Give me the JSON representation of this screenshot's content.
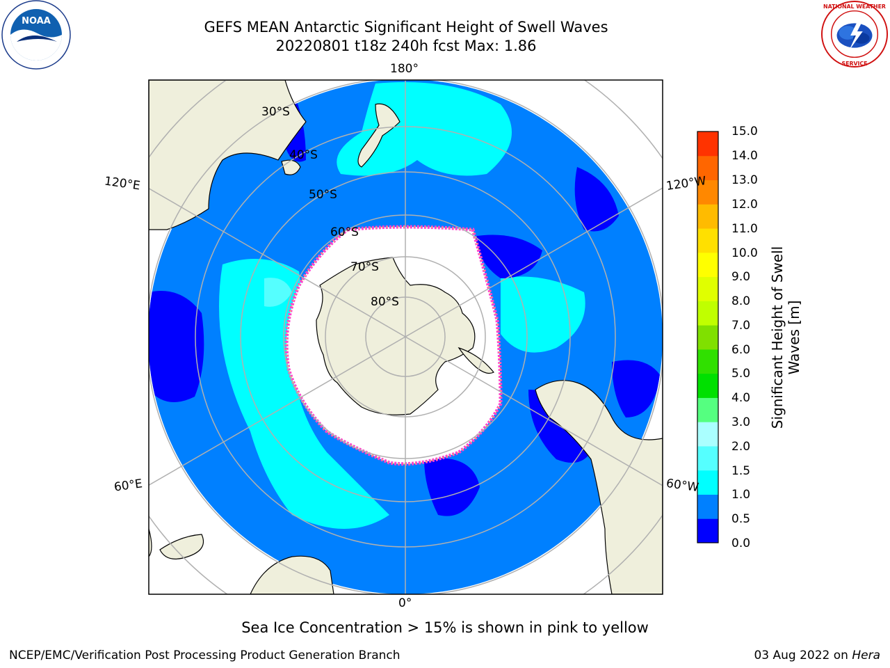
{
  "header": {
    "title_line1": "GEFS MEAN Antarctic Significant Height of Swell Waves",
    "title_line2": "20220801 t18z 240h fcst   Max: 1.86"
  },
  "logos": {
    "left": "NOAA",
    "right": "NATIONAL WEATHER SERVICE"
  },
  "map": {
    "projection": "south-polar-stereographic",
    "longitude_labels": [
      "180°",
      "120°E",
      "120°W",
      "60°E",
      "60°W",
      "0°"
    ],
    "latitude_labels": [
      "30°S",
      "40°S",
      "50°S",
      "60°S",
      "70°S",
      "80°S"
    ],
    "colors": {
      "ocean_low": "#0000ff",
      "ocean_mid": "#0080ff",
      "ocean_cyan": "#00ffff",
      "ocean_light": "#55ffff",
      "land": "#efefdc",
      "sea_ice": "#ffffff",
      "ice_edge": "#ff55cc"
    }
  },
  "colorbar": {
    "label": "Significant Height of Swell Waves [m]",
    "ticks": [
      "15.0",
      "14.0",
      "13.0",
      "12.0",
      "11.0",
      "10.0",
      "9.0",
      "8.0",
      "7.0",
      "6.0",
      "5.0",
      "4.0",
      "3.0",
      "2.0",
      "1.5",
      "1.0",
      "0.5",
      "0.0"
    ],
    "colors": [
      "#0000ff",
      "#0080ff",
      "#00ffff",
      "#55ffff",
      "#aaffff",
      "#55ff80",
      "#00e000",
      "#30e000",
      "#80e000",
      "#c0ff00",
      "#e0ff00",
      "#ffff00",
      "#ffe000",
      "#ffbb00",
      "#ff8800",
      "#ff6600",
      "#ff3300",
      "#ff0000"
    ]
  },
  "footer": {
    "note": "Sea Ice Concentration > 15% is shown in pink to yellow",
    "credit": "NCEP/EMC/Verification Post Processing Product Generation Branch",
    "date": "03 Aug 2022 on ",
    "host": "Hera"
  }
}
